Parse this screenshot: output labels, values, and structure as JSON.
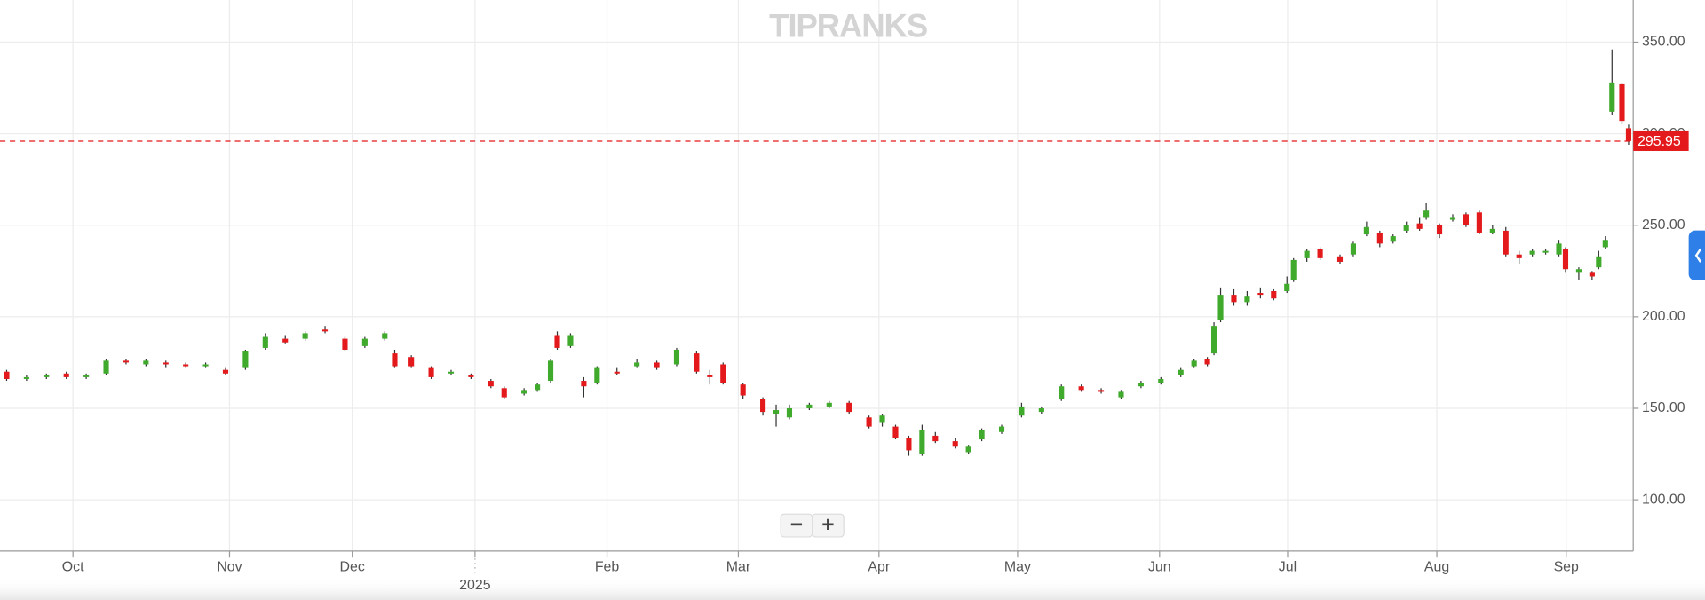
{
  "chart_data": {
    "type": "candlestick",
    "watermark": "TIPRANKS",
    "x": [
      1,
      4,
      7,
      10,
      13,
      16,
      19,
      22,
      25,
      28,
      31,
      34,
      37,
      40,
      43,
      46,
      49,
      52,
      55,
      58,
      59.5,
      62,
      65,
      68,
      71,
      74,
      76,
      79,
      81,
      83,
      84,
      86,
      88,
      90,
      93,
      96,
      99,
      102,
      105,
      107,
      109,
      112,
      115,
      117,
      119,
      122,
      125,
      128,
      131,
      133,
      135,
      137,
      139,
      141,
      144,
      146,
      148,
      151,
      154,
      157,
      160,
      163,
      166,
      169,
      172,
      175,
      178,
      180,
      182,
      183,
      184,
      186,
      188,
      190,
      192,
      194,
      195,
      197,
      199,
      202,
      204,
      206,
      208,
      210,
      212,
      214,
      215,
      217,
      219,
      221,
      223,
      225,
      227,
      229,
      231,
      233,
      235,
      236,
      238,
      240,
      241,
      242,
      243,
      244.5,
      245.5
    ],
    "open": [
      170,
      166,
      167,
      169,
      167,
      169,
      176,
      174,
      175,
      174,
      173,
      171,
      172,
      183,
      188,
      188,
      193,
      188,
      184,
      188,
      180,
      178,
      172,
      169,
      168,
      165,
      161,
      158,
      160,
      165,
      190,
      184,
      165,
      164,
      170,
      173,
      175,
      174,
      180,
      168,
      174,
      163,
      155,
      147,
      145,
      150,
      151,
      153,
      145,
      142,
      140,
      134,
      125,
      135,
      132,
      126,
      133,
      137,
      146,
      148,
      155,
      162,
      160,
      156,
      162,
      164,
      168,
      173,
      177,
      180,
      198,
      212,
      208,
      213,
      214,
      214,
      220,
      232,
      237,
      233,
      234,
      245,
      246,
      241,
      247,
      251,
      254,
      250,
      253,
      256,
      257,
      246,
      247,
      234,
      234,
      235,
      234,
      237,
      224,
      224,
      227,
      238,
      312,
      327,
      303
    ],
    "high": [
      171,
      168,
      169,
      170,
      169,
      177,
      177,
      177,
      176,
      175,
      175,
      172,
      182,
      191,
      190,
      192,
      195,
      189,
      189,
      192,
      182,
      179,
      173,
      171,
      169,
      166,
      162,
      161,
      164,
      177,
      192,
      191,
      167,
      173,
      172,
      177,
      176,
      183,
      181,
      171,
      175,
      164,
      156,
      152,
      152,
      153,
      154,
      154,
      146,
      147,
      141,
      135,
      141,
      137,
      134,
      130,
      139,
      141,
      153,
      151,
      163,
      163,
      161,
      160,
      165,
      167,
      172,
      177,
      178,
      197,
      216,
      215,
      214,
      216,
      215,
      222,
      232,
      237,
      238,
      234,
      241,
      252,
      247,
      245,
      252,
      254,
      262,
      251,
      256,
      257,
      258,
      250,
      249,
      236,
      237,
      237,
      242,
      238,
      227,
      225,
      236,
      244,
      346,
      328,
      305
    ],
    "low": [
      165,
      165,
      166,
      166,
      166,
      168,
      174,
      173,
      172,
      172,
      172,
      168,
      171,
      182,
      185,
      187,
      191,
      181,
      183,
      187,
      172,
      172,
      166,
      168,
      166,
      161,
      155,
      157,
      159,
      164,
      182,
      183,
      156,
      163,
      168,
      172,
      171,
      173,
      169,
      163,
      163,
      155,
      146,
      140,
      144,
      149,
      150,
      147,
      139,
      140,
      133,
      124,
      124,
      131,
      128,
      125,
      132,
      136,
      145,
      147,
      154,
      159,
      158,
      155,
      161,
      163,
      167,
      172,
      173,
      179,
      197,
      206,
      206,
      210,
      209,
      213,
      219,
      230,
      231,
      229,
      233,
      244,
      238,
      240,
      246,
      247,
      253,
      243,
      252,
      249,
      245,
      245,
      233,
      229,
      233,
      234,
      233,
      224,
      220,
      220,
      226,
      237,
      310,
      305,
      294
    ],
    "close": [
      166,
      167,
      168,
      167,
      168,
      176,
      175,
      176,
      174,
      173,
      174,
      169,
      181,
      189,
      186,
      191,
      192,
      182,
      188,
      191,
      173,
      173,
      167,
      170,
      167,
      162,
      156,
      160,
      163,
      176,
      183,
      190,
      162,
      172,
      169,
      175,
      172,
      182,
      170,
      167,
      164,
      157,
      148,
      149,
      150,
      152,
      153,
      148,
      140,
      146,
      134,
      127,
      138,
      132,
      129,
      129,
      138,
      140,
      151,
      150,
      162,
      160,
      159,
      159,
      164,
      166,
      171,
      176,
      174,
      195,
      212,
      208,
      211,
      212,
      210,
      218,
      231,
      236,
      232,
      230,
      240,
      249,
      240,
      244,
      250,
      248,
      258,
      245,
      254,
      250,
      246,
      248,
      234,
      232,
      236,
      236,
      240,
      226,
      226,
      222,
      233,
      242,
      328,
      307,
      296
    ],
    "up_color": "#3faa2b",
    "down_color": "#e3191b",
    "xlim": [
      0,
      246.2
    ],
    "xticks": [
      {
        "value": 11,
        "label": "Oct"
      },
      {
        "value": 34.6,
        "label": "Nov"
      },
      {
        "value": 53.1,
        "label": "Dec"
      },
      {
        "value": 71.6,
        "label": ""
      },
      {
        "value": 91.5,
        "label": "Feb"
      },
      {
        "value": 111.3,
        "label": "Mar"
      },
      {
        "value": 132.5,
        "label": "Apr"
      },
      {
        "value": 153.4,
        "label": "May"
      },
      {
        "value": 174.8,
        "label": "Jun"
      },
      {
        "value": 194.1,
        "label": "Jul"
      },
      {
        "value": 216.6,
        "label": "Aug"
      },
      {
        "value": 236.1,
        "label": "Sep"
      }
    ],
    "year_ticks": [
      {
        "value": 71.6,
        "label": "2025"
      }
    ],
    "ylim": [
      72,
      373
    ],
    "yticks": [
      {
        "value": 100,
        "label": "100.00"
      },
      {
        "value": 150,
        "label": "150.00"
      },
      {
        "value": 200,
        "label": "200.00"
      },
      {
        "value": 250,
        "label": "250.00"
      },
      {
        "value": 300,
        "label": "300.00"
      },
      {
        "value": 350,
        "label": "350.00"
      }
    ],
    "last_price": 295.95,
    "last_price_color": "#e3191b",
    "grid": true
  },
  "controls": {
    "zoom_out": "−",
    "zoom_in": "+"
  }
}
